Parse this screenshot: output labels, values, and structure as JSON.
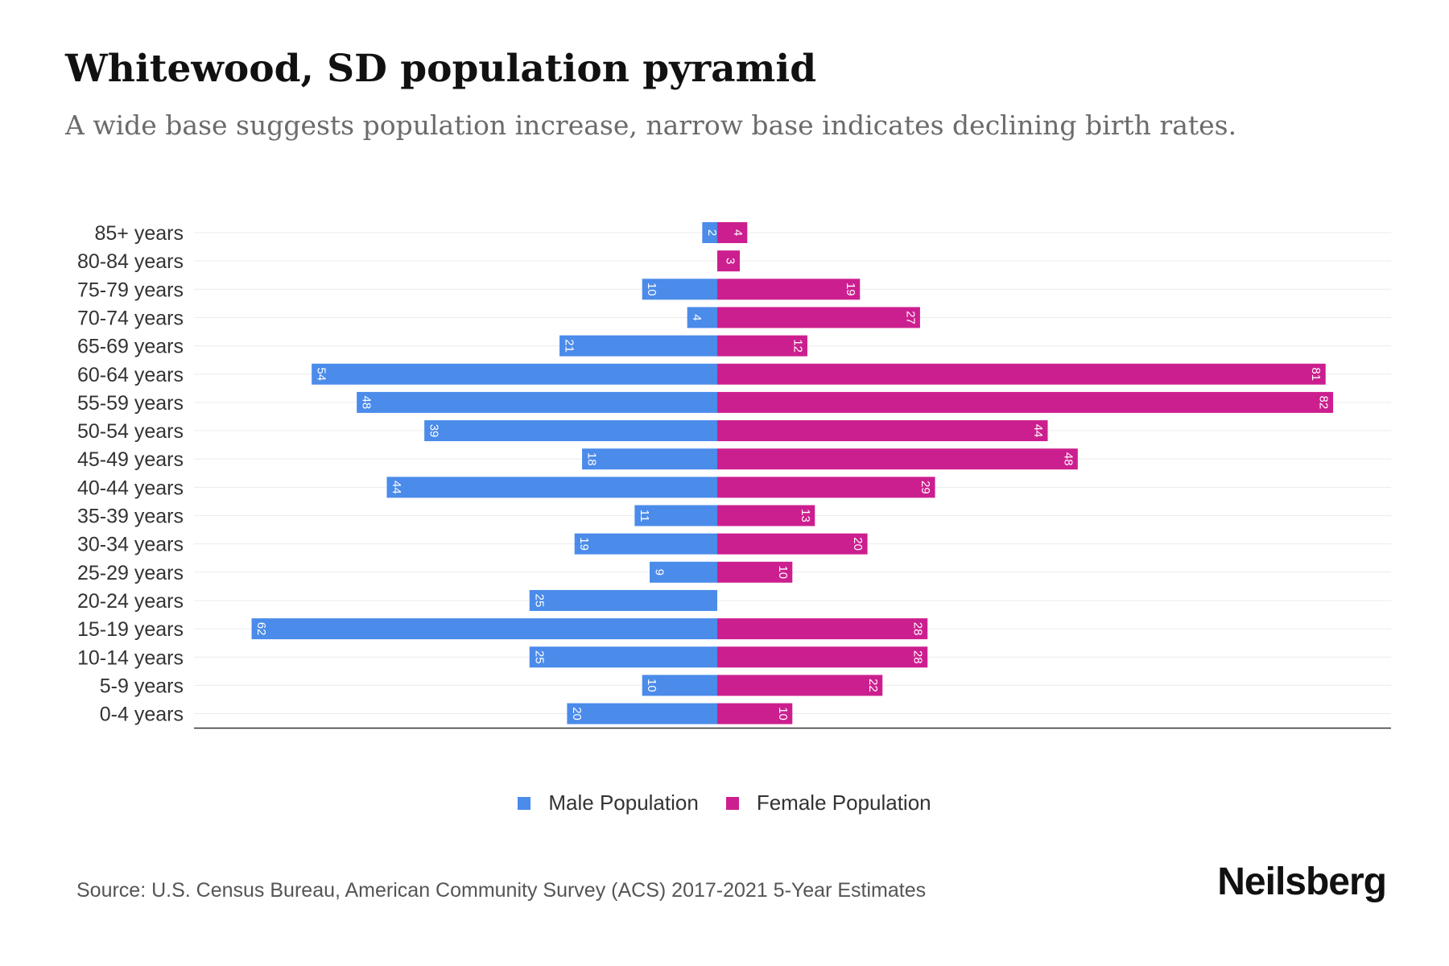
{
  "title": "Whitewood, SD population pyramid",
  "subtitle": "A wide base suggests population increase, narrow base indicates declining birth rates.",
  "source": "Source: U.S. Census Bureau, American Community Survey (ACS) 2017-2021 5-Year Estimates",
  "brand": "Neilsberg",
  "colors": {
    "male": "#4b8bea",
    "female": "#cc1f8f"
  },
  "chart_data": {
    "type": "bar",
    "orientation": "horizontal-diverging",
    "categories": [
      "85+ years",
      "80-84 years",
      "75-79 years",
      "70-74 years",
      "65-69 years",
      "60-64 years",
      "55-59 years",
      "50-54 years",
      "45-49 years",
      "40-44 years",
      "35-39 years",
      "30-34 years",
      "25-29 years",
      "20-24 years",
      "15-19 years",
      "10-14 years",
      "5-9 years",
      "0-4 years"
    ],
    "series": [
      {
        "name": "Male Population",
        "values": [
          2,
          0,
          10,
          4,
          21,
          54,
          48,
          39,
          18,
          44,
          11,
          19,
          9,
          25,
          62,
          25,
          10,
          20
        ]
      },
      {
        "name": "Female Population",
        "values": [
          4,
          3,
          19,
          27,
          12,
          81,
          82,
          44,
          48,
          29,
          13,
          20,
          10,
          0,
          28,
          28,
          22,
          10
        ]
      }
    ],
    "xlim": [
      -70,
      90
    ],
    "legend_position": "bottom-center",
    "grid": true
  }
}
